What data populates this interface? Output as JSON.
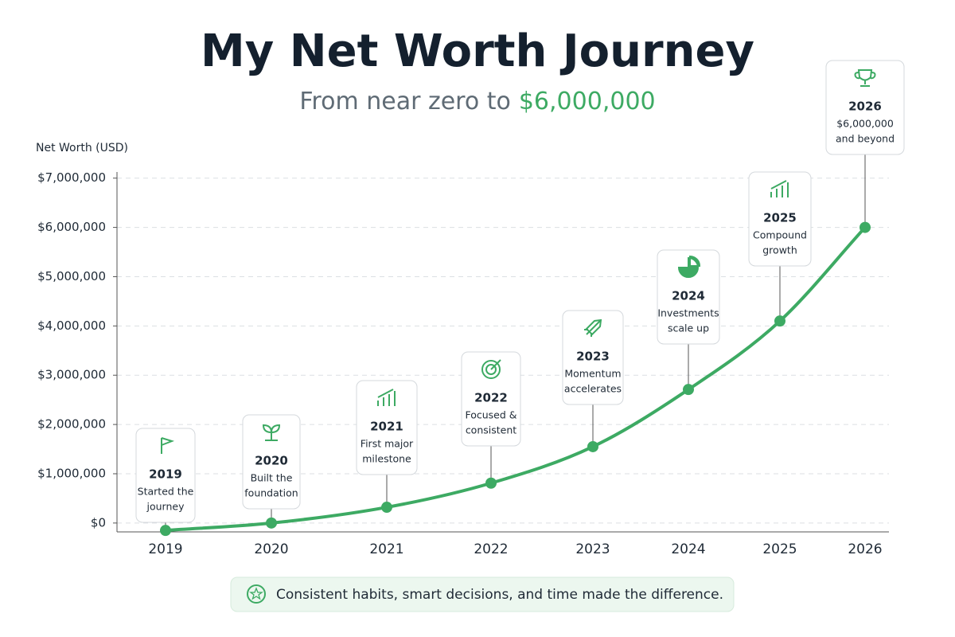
{
  "chart_data": {
    "type": "line",
    "title": "My Net Worth Journey",
    "subtitle": "From near zero to",
    "subtitle_highlight": "$6,000,000",
    "y_label": "Net Worth (USD)",
    "categories": [
      "2019",
      "2020",
      "2021",
      "2022",
      "2023",
      "2024",
      "2025",
      "2026"
    ],
    "values": [
      -150000,
      0,
      320000,
      810000,
      1550000,
      2710000,
      4100000,
      6000000
    ],
    "color": "#3daa63",
    "ylim": [
      -180000,
      7060000
    ],
    "yticks": [
      {
        "value": 0,
        "label": "$0"
      },
      {
        "value": 1000000,
        "label": "$1,000,000"
      },
      {
        "value": 2000000,
        "label": "$2,000,000"
      },
      {
        "value": 3000000,
        "label": "$3,000,000"
      },
      {
        "value": 4000000,
        "label": "$4,000,000"
      },
      {
        "value": 5000000,
        "label": "$5,000,000"
      },
      {
        "value": 6000000,
        "label": "$6,000,000"
      },
      {
        "value": 7000000,
        "label": "$7,000,000"
      }
    ],
    "grid": true,
    "annotations": [
      [
        "Started the",
        "journey"
      ],
      [
        "Built the",
        "foundation"
      ],
      [
        "First major",
        "milestone"
      ],
      [
        "Focused &",
        "consistent"
      ],
      [
        "Momentum",
        "accelerates"
      ],
      [
        "Investments",
        "scale up"
      ],
      [
        "Compound",
        "growth"
      ],
      [
        "$6,000,000",
        "and beyond"
      ]
    ],
    "footer": "Consistent habits, smart decisions, and time made the difference."
  }
}
